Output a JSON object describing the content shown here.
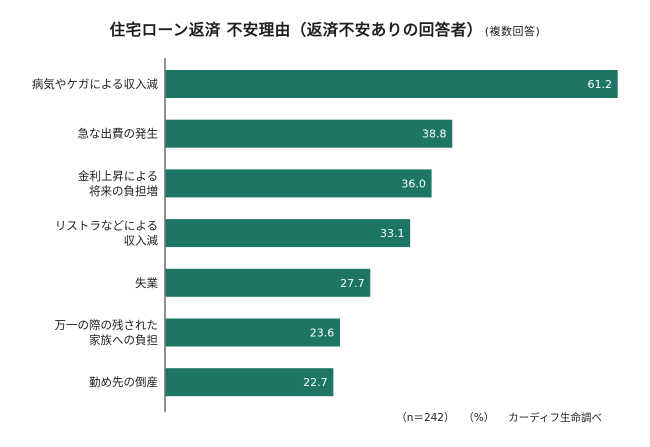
{
  "title": "住宅ローン返済  不安理由（返済不安ありの回答者）",
  "title_note": "(複数回答)",
  "footer": {
    "sample": "（n＝242）",
    "unit": "（%）",
    "source": "カーディフ生命調べ"
  },
  "colors": {
    "bar": "#1d7566",
    "axis": "#555555"
  },
  "chart_data": {
    "type": "bar",
    "orientation": "horizontal",
    "categories": [
      [
        "病気やケガによる収入減"
      ],
      [
        "急な出費の発生"
      ],
      [
        "金利上昇による",
        "将来の負担増"
      ],
      [
        "リストラなどによる",
        "収入減"
      ],
      [
        "失業"
      ],
      [
        "万一の際の残された",
        "家族への負担"
      ],
      [
        "勤め先の倒産"
      ]
    ],
    "values": [
      61.2,
      38.8,
      36.0,
      33.1,
      27.7,
      23.6,
      22.7
    ],
    "value_labels": [
      "61.2",
      "38.8",
      "36.0",
      "33.1",
      "27.7",
      "23.6",
      "22.7"
    ],
    "xlim": [
      0,
      61.2
    ],
    "grid": false,
    "legend": "none"
  }
}
